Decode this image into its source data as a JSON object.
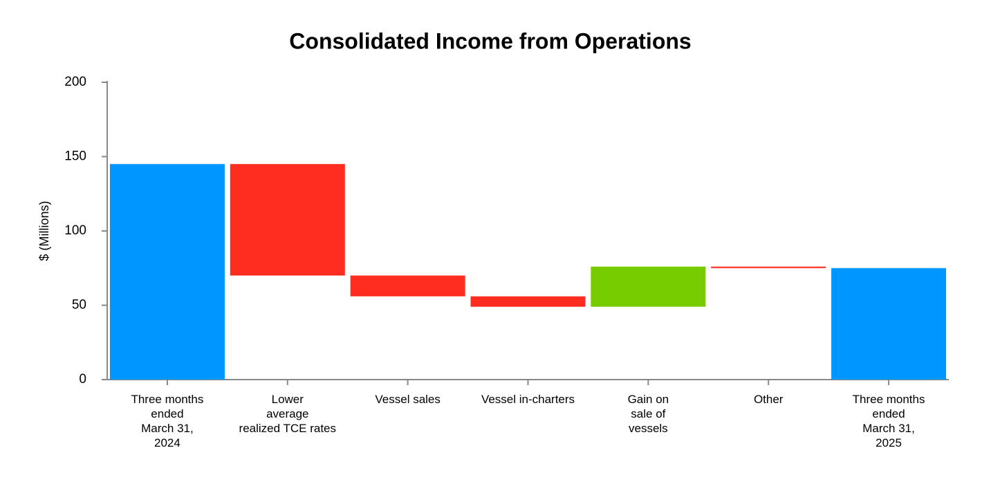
{
  "chart_data": {
    "type": "waterfall",
    "title": "Consolidated Income from Operations",
    "y_label": "$ (Millions)",
    "categories": [
      "Three months\nended\nMarch 31,\n2024",
      "Lower\naverage\nrealized TCE rates",
      "Vessel sales",
      "Vessel in-charters",
      "Gain on\nsale of\nvessels",
      "Other",
      "Three months\nended\nMarch 31,\n2025"
    ],
    "values": [
      145,
      -75,
      -14,
      -7,
      27,
      -1,
      75
    ],
    "is_total": [
      true,
      false,
      false,
      false,
      false,
      false,
      true
    ],
    "colors": {
      "total": "#0096ff",
      "increase": "#77cc00",
      "decrease": "#ff2d1f"
    },
    "ylim": [
      0,
      200
    ],
    "yticks": [
      0,
      50,
      100,
      150,
      200
    ]
  }
}
